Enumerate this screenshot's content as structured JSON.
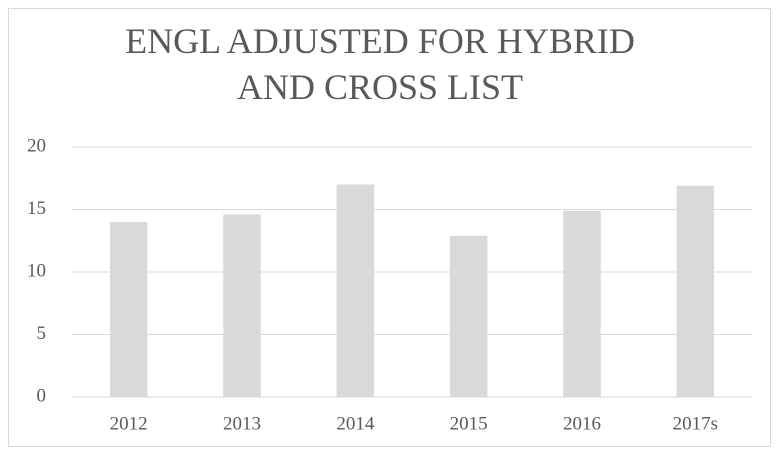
{
  "chart_data": {
    "type": "bar",
    "title": "ENGL ADJUSTED FOR HYBRID AND CROSS LIST",
    "categories": [
      "2012",
      "2013",
      "2014",
      "2015",
      "2016",
      "2017s"
    ],
    "values": [
      14,
      14.6,
      17,
      12.9,
      14.9,
      16.9
    ],
    "color": "#d9d9d9",
    "ylim": [
      0,
      20
    ],
    "yticks": [
      0,
      5,
      10,
      15,
      20
    ],
    "grid": true
  }
}
